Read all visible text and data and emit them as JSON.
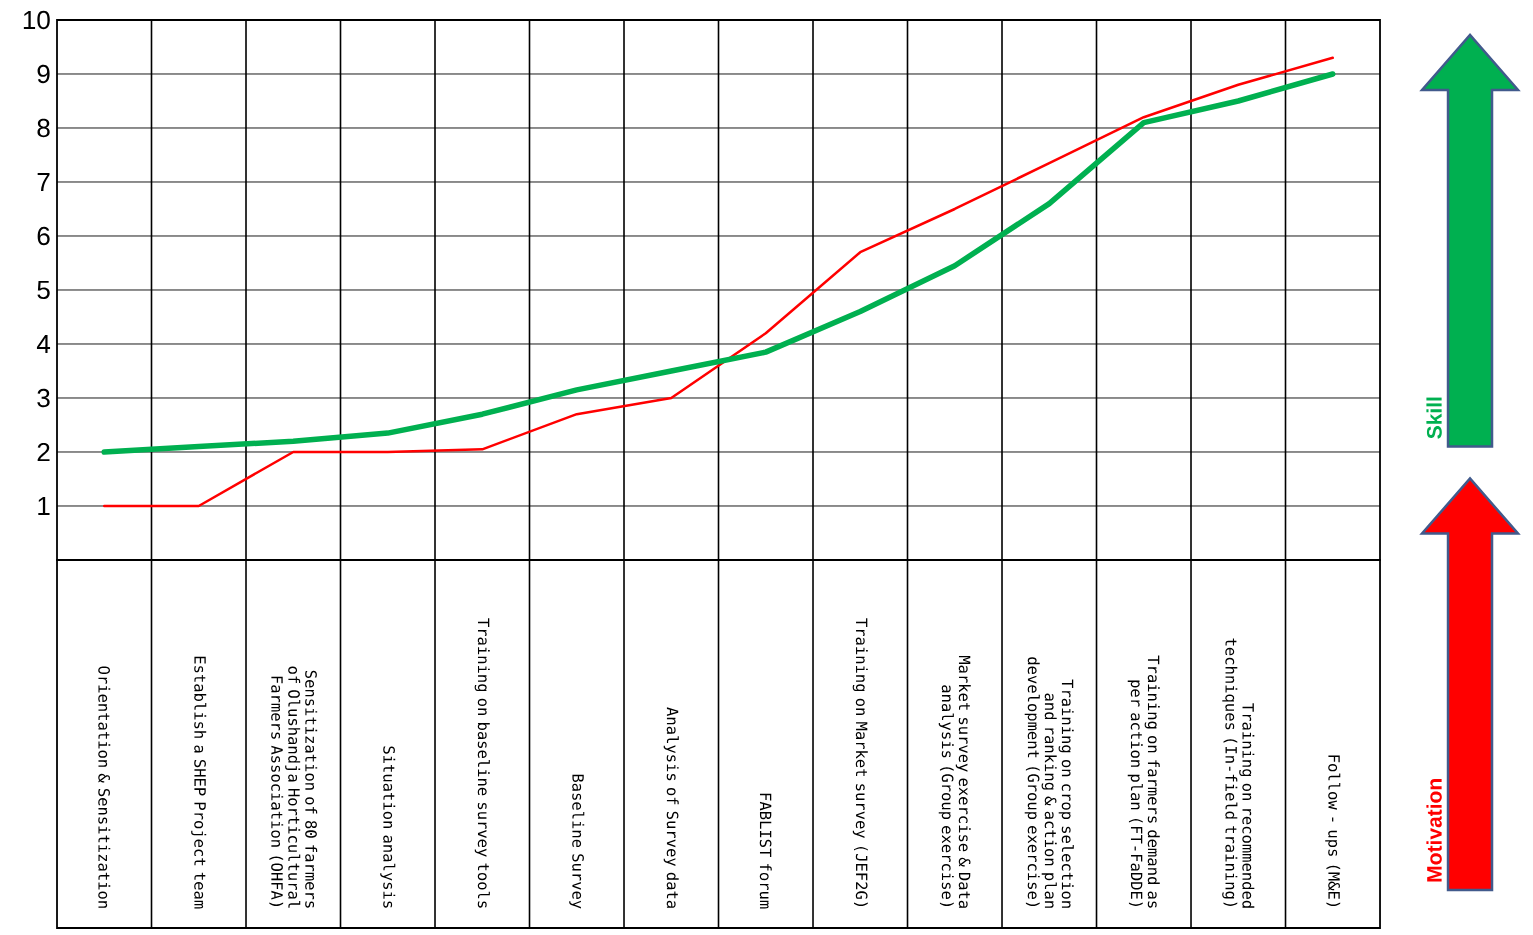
{
  "chart_data": {
    "type": "line",
    "categories": [
      "Orientation & Sensitization",
      "Establish a SHEP Project team",
      "Sensitization of 80 farmers of Olushandja Horticultural Farmers Association (OHFA)",
      "Situation analysis",
      "Training on baseline survey tools",
      "Baseline Survey",
      "Analysis of Survey data",
      "FABLIST forum",
      "Training on Market survey (JEF2G)",
      "Market survey exercise & Data analysis (Group exercise)",
      "Training on crop selection and ranking & action plan development (Group exercise)",
      "Training on farmers demand as per action plan (FT-FaDDE)",
      "Training on recommended techniques (In-field training)",
      "Follow - ups (M&E)"
    ],
    "series": [
      {
        "name": "Motivation",
        "color": "#ff0000",
        "values": [
          1,
          1,
          2,
          2,
          2.05,
          2.7,
          3,
          4.2,
          5.7,
          6.5,
          7.35,
          8.2,
          8.8,
          9.3
        ]
      },
      {
        "name": "Skill",
        "color": "#00b050",
        "values": [
          2,
          2.1,
          2.2,
          2.35,
          2.7,
          3.15,
          3.5,
          3.85,
          4.6,
          5.45,
          6.6,
          8.1,
          8.5,
          9
        ]
      }
    ],
    "ylim": [
      0,
      10
    ],
    "yticks": [
      1,
      2,
      3,
      4,
      5,
      6,
      7,
      8,
      9,
      10
    ],
    "grid": "y",
    "legend": "right"
  }
}
